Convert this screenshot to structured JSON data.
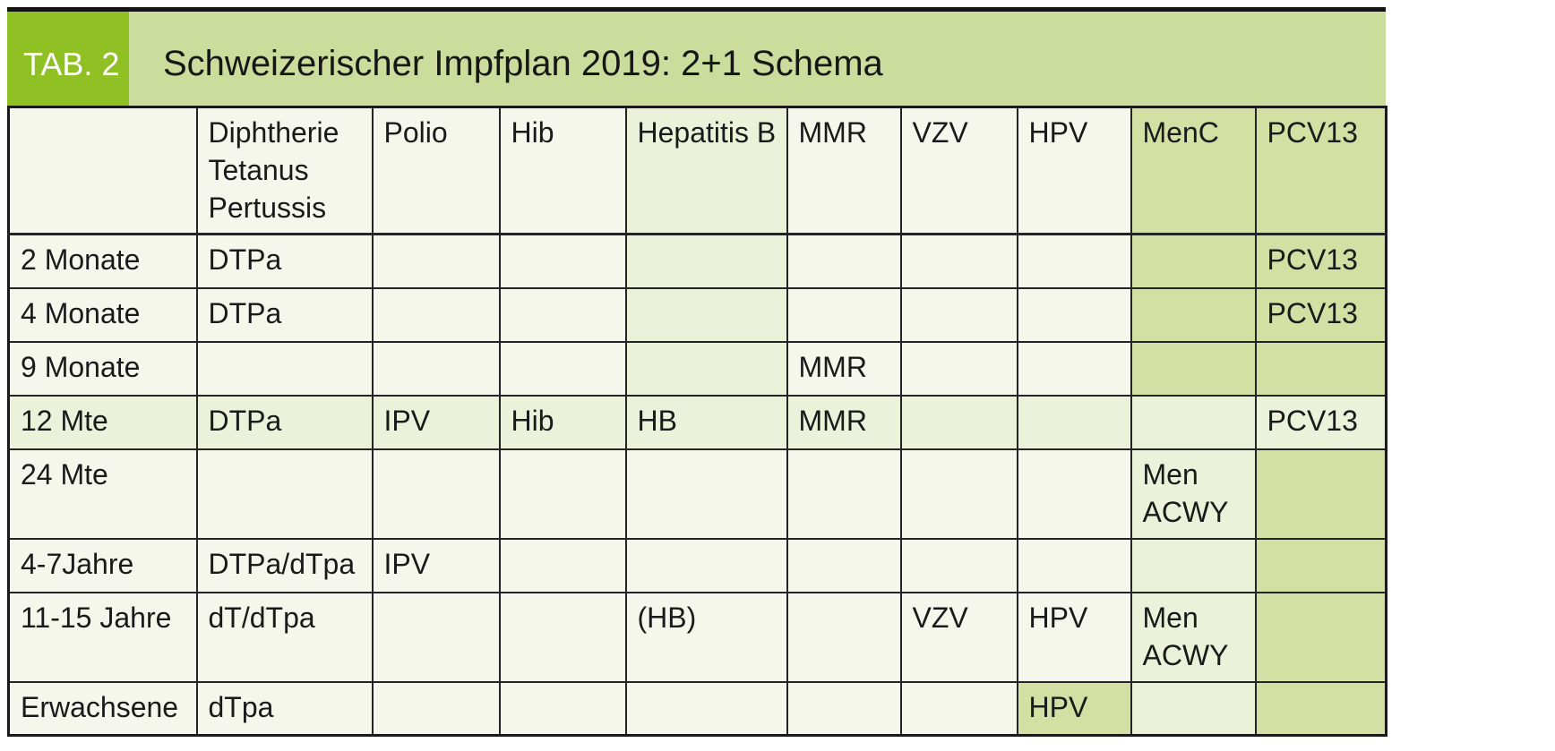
{
  "header": {
    "tag_label": "TAB. 2",
    "title": "Schweizerischer Impfplan 2019: 2+1 Schema"
  },
  "colors": {
    "accent_green": "#8fc125",
    "band_green": "#ccdc9c",
    "cell_medium_green": "#d4dfa4",
    "cell_light_green": "#ecf1da",
    "cell_off_white": "#f6f7ec",
    "border": "#242424",
    "tag_text": "#ffffff"
  },
  "chart_data": {
    "type": "table",
    "title": "Schweizerischer Impfplan 2019: 2+1 Schema",
    "columns": [
      "",
      "Diphtherie Tetanus Pertussis",
      "Polio",
      "Hib",
      "Hepatitis B",
      "MMR",
      "VZV",
      "HPV",
      "MenC",
      "PCV13"
    ],
    "rows": [
      [
        "2 Monate",
        "DTPa",
        "",
        "",
        "",
        "",
        "",
        "",
        "",
        "PCV13"
      ],
      [
        "4 Monate",
        "DTPa",
        "",
        "",
        "",
        "",
        "",
        "",
        "",
        "PCV13"
      ],
      [
        "9 Monate",
        "",
        "",
        "",
        "",
        "MMR",
        "",
        "",
        "",
        ""
      ],
      [
        "12 Mte",
        "DTPa",
        "IPV",
        "Hib",
        "HB",
        "MMR",
        "",
        "",
        "",
        "PCV13"
      ],
      [
        "24 Mte",
        "",
        "",
        "",
        "",
        "",
        "",
        "",
        "Men ACWY",
        ""
      ],
      [
        "4-7Jahre",
        "DTPa/dTpa",
        "IPV",
        "",
        "",
        "",
        "",
        "",
        "",
        ""
      ],
      [
        "11-15 Jahre",
        "dT/dTpa",
        "",
        "",
        "(HB)",
        "",
        "VZV",
        "HPV",
        "Men ACWY",
        ""
      ],
      [
        "Erwachsene",
        "dTpa",
        "",
        "",
        "",
        "",
        "",
        "HPV",
        "",
        ""
      ]
    ]
  },
  "table": {
    "header": {
      "cells": [
        {
          "text": "",
          "shade": "plain"
        },
        {
          "text": "Diphtherie Tetanus Pertussis",
          "shade": "plain"
        },
        {
          "text": "Polio",
          "shade": "plain"
        },
        {
          "text": "Hib",
          "shade": "plain"
        },
        {
          "text": "Hepatitis B",
          "shade": "light"
        },
        {
          "text": "MMR",
          "shade": "plain"
        },
        {
          "text": "VZV",
          "shade": "plain"
        },
        {
          "text": "HPV",
          "shade": "plain"
        },
        {
          "text": "MenC",
          "shade": "medium"
        },
        {
          "text": "PCV13",
          "shade": "medium"
        }
      ]
    },
    "rows": [
      {
        "cells": [
          {
            "text": "2 Monate",
            "shade": "plain"
          },
          {
            "text": "DTPa",
            "shade": "plain"
          },
          {
            "text": "",
            "shade": "plain"
          },
          {
            "text": "",
            "shade": "plain"
          },
          {
            "text": "",
            "shade": "light"
          },
          {
            "text": "",
            "shade": "plain"
          },
          {
            "text": "",
            "shade": "plain"
          },
          {
            "text": "",
            "shade": "plain"
          },
          {
            "text": "",
            "shade": "medium"
          },
          {
            "text": "PCV13",
            "shade": "medium"
          }
        ]
      },
      {
        "cells": [
          {
            "text": "4 Monate",
            "shade": "plain"
          },
          {
            "text": "DTPa",
            "shade": "plain"
          },
          {
            "text": "",
            "shade": "plain"
          },
          {
            "text": "",
            "shade": "plain"
          },
          {
            "text": "",
            "shade": "light"
          },
          {
            "text": "",
            "shade": "plain"
          },
          {
            "text": "",
            "shade": "plain"
          },
          {
            "text": "",
            "shade": "plain"
          },
          {
            "text": "",
            "shade": "medium"
          },
          {
            "text": "PCV13",
            "shade": "medium"
          }
        ]
      },
      {
        "cells": [
          {
            "text": "9 Monate",
            "shade": "plain"
          },
          {
            "text": "",
            "shade": "plain"
          },
          {
            "text": "",
            "shade": "plain"
          },
          {
            "text": "",
            "shade": "plain"
          },
          {
            "text": "",
            "shade": "light"
          },
          {
            "text": "MMR",
            "shade": "plain"
          },
          {
            "text": "",
            "shade": "plain"
          },
          {
            "text": "",
            "shade": "plain"
          },
          {
            "text": "",
            "shade": "medium"
          },
          {
            "text": "",
            "shade": "medium"
          }
        ]
      },
      {
        "cells": [
          {
            "text": "12 Mte",
            "shade": "light"
          },
          {
            "text": "DTPa",
            "shade": "light"
          },
          {
            "text": "IPV",
            "shade": "light"
          },
          {
            "text": "Hib",
            "shade": "light"
          },
          {
            "text": "HB",
            "shade": "light"
          },
          {
            "text": "MMR",
            "shade": "light"
          },
          {
            "text": "",
            "shade": "light"
          },
          {
            "text": "",
            "shade": "light"
          },
          {
            "text": "",
            "shade": "light"
          },
          {
            "text": "PCV13",
            "shade": "light"
          }
        ]
      },
      {
        "cells": [
          {
            "text": "24 Mte",
            "shade": "plain"
          },
          {
            "text": "",
            "shade": "plain"
          },
          {
            "text": "",
            "shade": "plain"
          },
          {
            "text": "",
            "shade": "plain"
          },
          {
            "text": "",
            "shade": "plain"
          },
          {
            "text": "",
            "shade": "plain"
          },
          {
            "text": "",
            "shade": "plain"
          },
          {
            "text": "",
            "shade": "plain"
          },
          {
            "text": "Men ACWY",
            "shade": "light"
          },
          {
            "text": "",
            "shade": "medium"
          }
        ]
      },
      {
        "cells": [
          {
            "text": "4-7Jahre",
            "shade": "plain"
          },
          {
            "text": "DTPa/dTpa",
            "shade": "plain"
          },
          {
            "text": "IPV",
            "shade": "plain"
          },
          {
            "text": "",
            "shade": "plain"
          },
          {
            "text": "",
            "shade": "plain"
          },
          {
            "text": "",
            "shade": "plain"
          },
          {
            "text": "",
            "shade": "plain"
          },
          {
            "text": "",
            "shade": "plain"
          },
          {
            "text": "",
            "shade": "light"
          },
          {
            "text": "",
            "shade": "medium"
          }
        ]
      },
      {
        "cells": [
          {
            "text": "11-15 Jahre",
            "shade": "plain"
          },
          {
            "text": "dT/dTpa",
            "shade": "plain"
          },
          {
            "text": "",
            "shade": "plain"
          },
          {
            "text": "",
            "shade": "plain"
          },
          {
            "text": "(HB)",
            "shade": "plain"
          },
          {
            "text": "",
            "shade": "plain"
          },
          {
            "text": "VZV",
            "shade": "plain"
          },
          {
            "text": "HPV",
            "shade": "plain"
          },
          {
            "text": "Men ACWY",
            "shade": "light"
          },
          {
            "text": "",
            "shade": "medium"
          }
        ]
      },
      {
        "cells": [
          {
            "text": "Erwachsene",
            "shade": "plain"
          },
          {
            "text": "dTpa",
            "shade": "plain"
          },
          {
            "text": "",
            "shade": "plain"
          },
          {
            "text": "",
            "shade": "plain"
          },
          {
            "text": "",
            "shade": "plain"
          },
          {
            "text": "",
            "shade": "plain"
          },
          {
            "text": "",
            "shade": "plain"
          },
          {
            "text": "HPV",
            "shade": "medium"
          },
          {
            "text": "",
            "shade": "light"
          },
          {
            "text": "",
            "shade": "medium"
          }
        ]
      }
    ]
  }
}
